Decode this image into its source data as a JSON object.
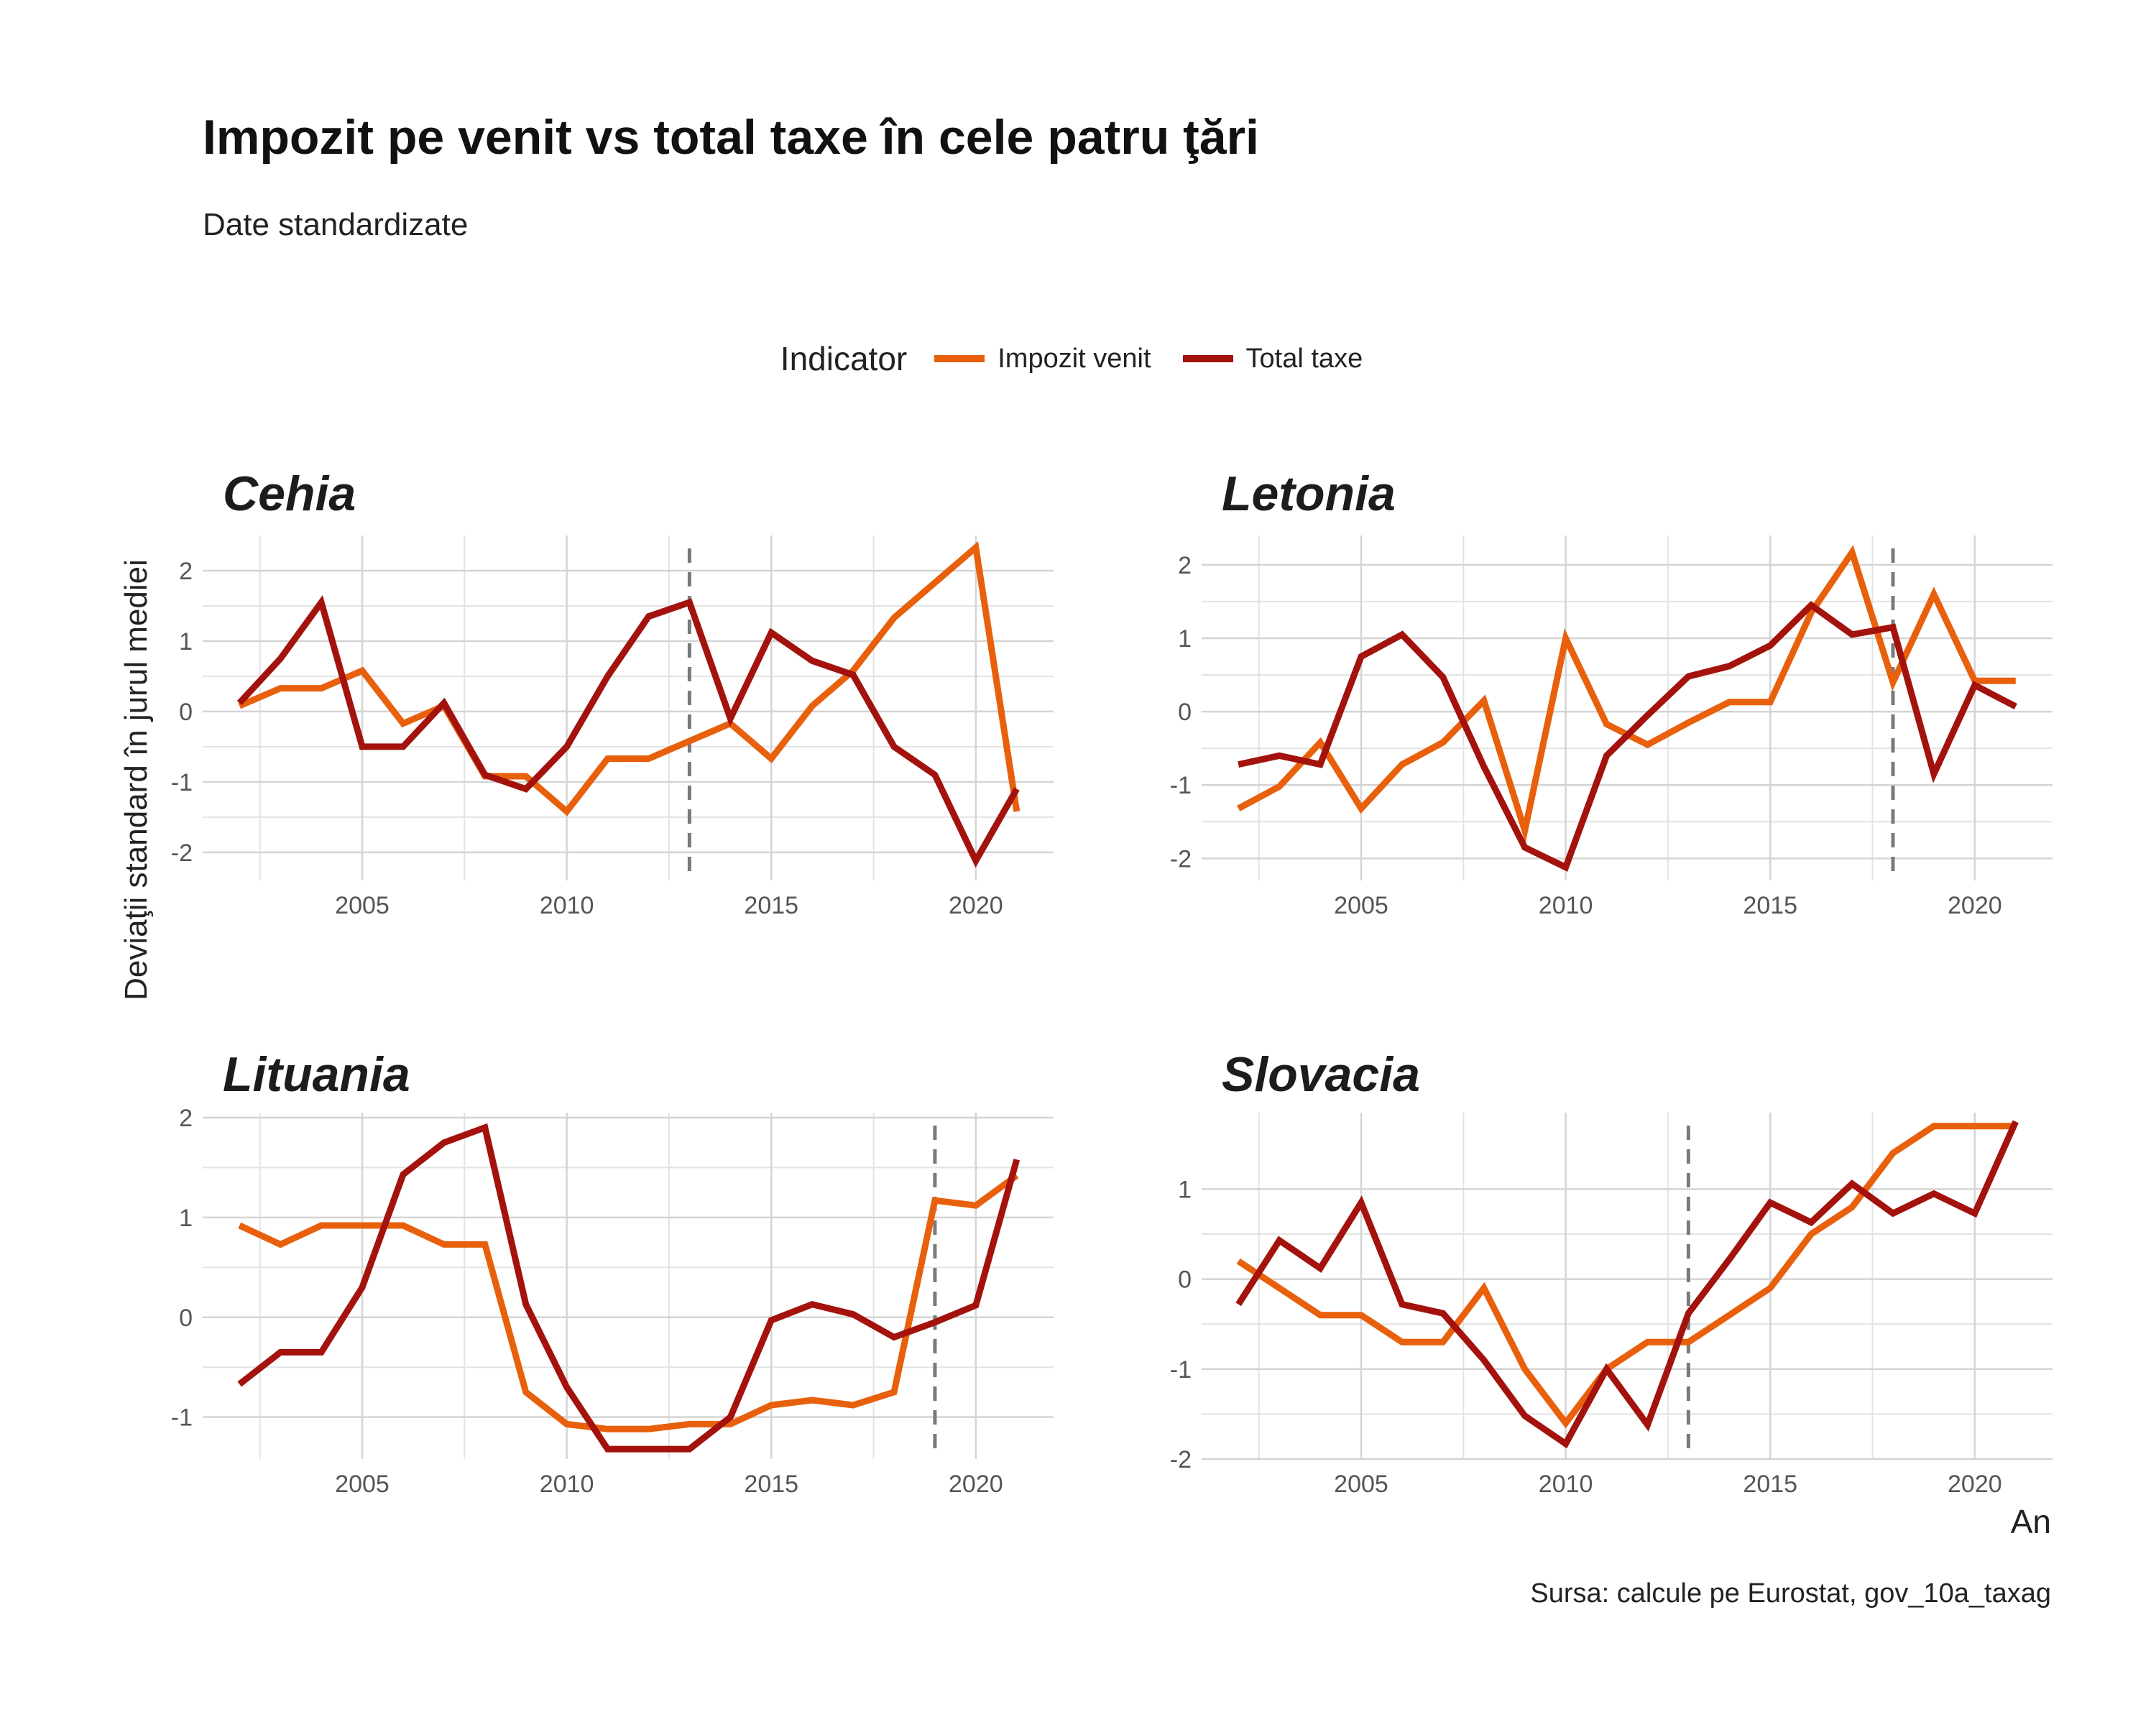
{
  "title": "Impozit pe venit vs total taxe în cele patru ţări",
  "subtitle": "Date standardizate",
  "legend": {
    "title": "Indicator",
    "items": [
      {
        "label": "Impozit venit",
        "color": "#e8600c"
      },
      {
        "label": "Total taxe",
        "color": "#a3120c"
      }
    ]
  },
  "ylabel": "Deviaţii standard în jurul mediei",
  "xlabel": "An",
  "caption": "Sursa: calcule pe Eurostat, gov_10a_taxag",
  "chart_data": [
    {
      "type": "line",
      "title": "Cehia",
      "x": [
        2002,
        2003,
        2004,
        2005,
        2006,
        2007,
        2008,
        2009,
        2010,
        2011,
        2012,
        2013,
        2014,
        2015,
        2016,
        2017,
        2018,
        2019,
        2020,
        2021
      ],
      "xticks": [
        2005,
        2010,
        2015,
        2020
      ],
      "ylim": [
        -2.4,
        2.5
      ],
      "yticks": [
        -2,
        -1,
        0,
        1,
        2
      ],
      "vline": 2013,
      "series": [
        {
          "name": "Impozit venit",
          "values": [
            0.08,
            0.33,
            0.33,
            0.58,
            -0.17,
            0.08,
            -0.92,
            -0.92,
            -1.42,
            -0.67,
            -0.67,
            -0.42,
            -0.17,
            -0.67,
            0.08,
            0.58,
            1.33,
            1.83,
            2.33,
            -1.42
          ]
        },
        {
          "name": "Total taxe",
          "values": [
            0.12,
            0.75,
            1.55,
            -0.5,
            -0.5,
            0.12,
            -0.9,
            -1.1,
            -0.5,
            0.5,
            1.35,
            1.55,
            -0.1,
            1.12,
            0.72,
            0.52,
            -0.5,
            -0.9,
            -2.12,
            -1.1
          ]
        }
      ]
    },
    {
      "type": "line",
      "title": "Letonia",
      "x": [
        2002,
        2003,
        2004,
        2005,
        2006,
        2007,
        2008,
        2009,
        2010,
        2011,
        2012,
        2013,
        2014,
        2015,
        2016,
        2017,
        2018,
        2019,
        2020,
        2021
      ],
      "xticks": [
        2005,
        2010,
        2015,
        2020
      ],
      "ylim": [
        -2.3,
        2.4
      ],
      "yticks": [
        -2,
        -1,
        0,
        1,
        2
      ],
      "vline": 2018,
      "series": [
        {
          "name": "Impozit venit",
          "values": [
            -1.32,
            -1.02,
            -0.42,
            -1.32,
            -0.72,
            -0.42,
            0.15,
            -1.62,
            1.0,
            -0.17,
            -0.45,
            -0.15,
            0.13,
            0.13,
            1.35,
            2.17,
            0.4,
            1.6,
            0.42,
            0.42
          ]
        },
        {
          "name": "Total taxe",
          "values": [
            -0.72,
            -0.6,
            -0.72,
            0.75,
            1.05,
            0.47,
            -0.75,
            -1.85,
            -2.12,
            -0.6,
            -0.05,
            0.48,
            0.62,
            0.9,
            1.45,
            1.05,
            1.15,
            -0.85,
            0.36,
            0.07
          ]
        }
      ]
    },
    {
      "type": "line",
      "title": "Lituania",
      "x": [
        2002,
        2003,
        2004,
        2005,
        2006,
        2007,
        2008,
        2009,
        2010,
        2011,
        2012,
        2013,
        2014,
        2015,
        2016,
        2017,
        2018,
        2019,
        2020,
        2021
      ],
      "xticks": [
        2005,
        2010,
        2015,
        2020
      ],
      "ylim": [
        -1.42,
        2.05
      ],
      "yticks": [
        -1,
        0,
        1,
        2
      ],
      "vline": 2019,
      "series": [
        {
          "name": "Impozit venit",
          "values": [
            0.92,
            0.73,
            0.92,
            0.92,
            0.92,
            0.73,
            0.73,
            -0.75,
            -1.07,
            -1.12,
            -1.12,
            -1.07,
            -1.07,
            -0.88,
            -0.83,
            -0.88,
            -0.75,
            1.17,
            1.12,
            1.42
          ]
        },
        {
          "name": "Total taxe",
          "values": [
            -0.67,
            -0.35,
            -0.35,
            0.3,
            1.43,
            1.75,
            1.9,
            0.13,
            -0.7,
            -1.32,
            -1.32,
            -1.32,
            -1.0,
            -0.03,
            0.13,
            0.03,
            -0.2,
            -0.05,
            0.12,
            1.58
          ]
        }
      ]
    },
    {
      "type": "line",
      "title": "Slovacia",
      "x": [
        2002,
        2003,
        2004,
        2005,
        2006,
        2007,
        2008,
        2009,
        2010,
        2011,
        2012,
        2013,
        2014,
        2015,
        2016,
        2017,
        2018,
        2019,
        2020,
        2021
      ],
      "xticks": [
        2005,
        2010,
        2015,
        2020
      ],
      "ylim": [
        -2.0,
        1.85
      ],
      "yticks": [
        -2,
        -1,
        0,
        1
      ],
      "vline": 2013,
      "series": [
        {
          "name": "Impozit venit",
          "values": [
            0.2,
            -0.1,
            -0.4,
            -0.4,
            -0.7,
            -0.7,
            -0.1,
            -1.0,
            -1.6,
            -1.0,
            -0.7,
            -0.7,
            -0.4,
            -0.1,
            0.5,
            0.8,
            1.4,
            1.7,
            1.7,
            1.7
          ]
        },
        {
          "name": "Total taxe",
          "values": [
            -0.28,
            0.43,
            0.12,
            0.85,
            -0.28,
            -0.38,
            -0.9,
            -1.52,
            -1.83,
            -1.0,
            -1.62,
            -0.38,
            0.22,
            0.85,
            0.63,
            1.06,
            0.73,
            0.95,
            0.73,
            1.75
          ]
        }
      ]
    }
  ]
}
